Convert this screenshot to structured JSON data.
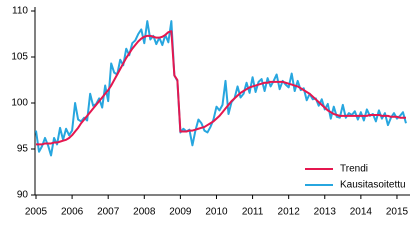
{
  "chart_data": {
    "type": "line",
    "categories": [
      "2005",
      null,
      null,
      null,
      null,
      null,
      null,
      null,
      null,
      null,
      null,
      null,
      "2006",
      null,
      null,
      null,
      null,
      null,
      null,
      null,
      null,
      null,
      null,
      null,
      "2007",
      null,
      null,
      null,
      null,
      null,
      null,
      null,
      null,
      null,
      null,
      null,
      "2008",
      null,
      null,
      null,
      null,
      null,
      null,
      null,
      null,
      null,
      null,
      null,
      "2009",
      null,
      null,
      null,
      null,
      null,
      null,
      null,
      null,
      null,
      null,
      null,
      "2010",
      null,
      null,
      null,
      null,
      null,
      null,
      null,
      null,
      null,
      null,
      null,
      "2011",
      null,
      null,
      null,
      null,
      null,
      null,
      null,
      null,
      null,
      null,
      null,
      "2012",
      null,
      null,
      null,
      null,
      null,
      null,
      null,
      null,
      null,
      null,
      null,
      "2013",
      null,
      null,
      null,
      null,
      null,
      null,
      null,
      null,
      null,
      null,
      null,
      "2014",
      null,
      null,
      null,
      null,
      null,
      null,
      null,
      null,
      null,
      null,
      null,
      "2015",
      null,
      null,
      null
    ],
    "series": [
      {
        "name": "Trendi",
        "color": "#e5174f",
        "values": [
          95.5,
          95.5,
          95.5,
          95.6,
          95.6,
          95.6,
          95.7,
          95.7,
          95.8,
          95.9,
          96.0,
          96.2,
          96.5,
          96.9,
          97.3,
          97.8,
          98.2,
          98.6,
          99.0,
          99.4,
          99.8,
          100.2,
          100.6,
          101.0,
          101.4,
          101.9,
          102.5,
          103.1,
          103.7,
          104.3,
          104.9,
          105.4,
          105.9,
          106.3,
          106.7,
          107.0,
          107.2,
          107.3,
          107.3,
          107.2,
          107.1,
          107.1,
          107.2,
          107.4,
          107.7,
          107.8,
          103.0,
          102.5,
          96.9,
          96.9,
          96.9,
          97.0,
          97.0,
          97.1,
          97.2,
          97.3,
          97.4,
          97.6,
          97.8,
          98.0,
          98.3,
          98.6,
          99.0,
          99.4,
          99.8,
          100.2,
          100.5,
          100.8,
          101.1,
          101.3,
          101.5,
          101.7,
          101.8,
          101.9,
          102.0,
          102.1,
          102.2,
          102.2,
          102.3,
          102.3,
          102.3,
          102.3,
          102.3,
          102.2,
          102.1,
          102.0,
          101.9,
          101.8,
          101.6,
          101.4,
          101.2,
          101.0,
          100.7,
          100.4,
          100.1,
          99.8,
          99.5,
          99.2,
          99.0,
          98.8,
          98.7,
          98.6,
          98.6,
          98.6,
          98.6,
          98.6,
          98.6,
          98.6,
          98.6,
          98.6,
          98.6,
          98.7,
          98.7,
          98.7,
          98.7,
          98.6,
          98.6,
          98.6,
          98.5,
          98.5,
          98.5,
          98.4,
          98.4,
          98.4
        ]
      },
      {
        "name": "Kausitasoitettu",
        "color": "#27a6df",
        "values": [
          97.0,
          94.7,
          95.3,
          96.2,
          95.4,
          94.3,
          96.2,
          95.5,
          97.3,
          96.0,
          97.2,
          96.5,
          97.0,
          100.0,
          98.2,
          98.0,
          98.4,
          98.1,
          101.0,
          99.7,
          99.9,
          100.5,
          99.5,
          101.9,
          100.2,
          104.3,
          103.3,
          103.1,
          104.7,
          104.1,
          105.9,
          105.2,
          106.5,
          106.8,
          107.5,
          108.0,
          106.5,
          108.9,
          106.9,
          107.3,
          106.4,
          107.1,
          106.3,
          107.4,
          106.6,
          108.9,
          103.0,
          102.4,
          96.8,
          97.2,
          96.9,
          97.1,
          95.4,
          97.0,
          98.2,
          97.8,
          97.0,
          96.8,
          97.4,
          98.2,
          99.6,
          99.2,
          99.8,
          102.4,
          98.8,
          100.1,
          100.5,
          101.8,
          100.6,
          101.0,
          102.2,
          101.1,
          102.8,
          101.2,
          102.3,
          102.6,
          101.3,
          102.7,
          101.8,
          102.4,
          103.1,
          101.5,
          102.4,
          102.0,
          101.7,
          103.2,
          101.3,
          102.4,
          101.4,
          101.6,
          100.3,
          101.0,
          100.4,
          100.5,
          99.7,
          100.4,
          99.3,
          99.9,
          98.3,
          99.6,
          98.5,
          98.4,
          99.8,
          98.4,
          98.9,
          98.7,
          99.1,
          98.2,
          99.0,
          98.1,
          99.3,
          98.6,
          98.8,
          98.0,
          99.2,
          98.3,
          98.9,
          97.6,
          98.4,
          98.9,
          98.3,
          98.6,
          99.0,
          97.8
        ]
      }
    ],
    "ylim": [
      90,
      110
    ],
    "yticks": [
      90,
      95,
      100,
      105,
      110
    ],
    "grid": false,
    "legend": "lower-right"
  }
}
